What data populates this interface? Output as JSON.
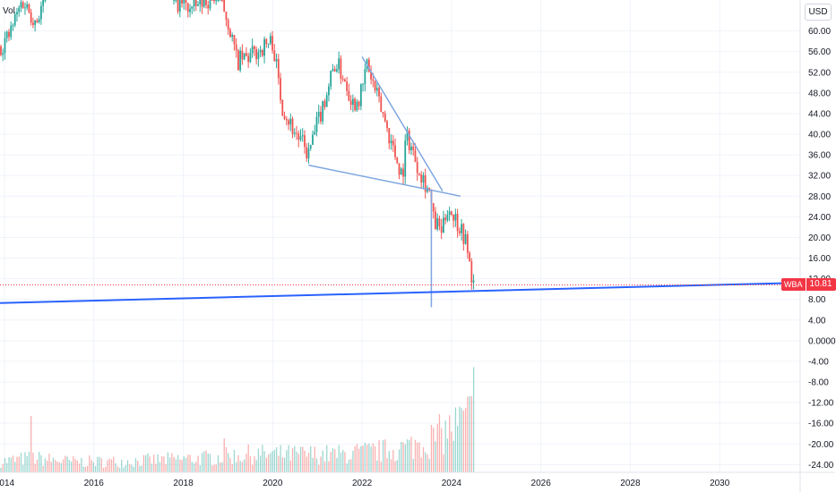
{
  "legend": {
    "volume_label": "Vol"
  },
  "currency": "USD",
  "last_price": {
    "symbol": "WBA",
    "value": "10.81",
    "numeric": 10.81,
    "color": "#f23645"
  },
  "colors": {
    "up": "#26a69a",
    "down": "#ef5350",
    "trendline": "#7fa6e0",
    "support": "#2962ff",
    "price_line": "#f23645"
  },
  "chart_data": {
    "type": "candlestick",
    "y_axis": {
      "ylim": [
        -25.5,
        66
      ],
      "ticks": [
        "60.00",
        "56.00",
        "52.00",
        "48.00",
        "44.00",
        "40.00",
        "36.00",
        "32.00",
        "28.00",
        "24.00",
        "20.00",
        "16.00",
        "12.00",
        "8.00",
        "4.00",
        "0.0000",
        "-4.00",
        "-8.00",
        "-12.00",
        "-16.00",
        "-20.00",
        "-24.00"
      ]
    },
    "x_axis": {
      "xlim": [
        2013.9,
        2031.8
      ],
      "ticks": [
        {
          "label": "2014",
          "value": 2014
        },
        {
          "label": "2016",
          "value": 2016
        },
        {
          "label": "2018",
          "value": 2018
        },
        {
          "label": "2020",
          "value": 2020
        },
        {
          "label": "2022",
          "value": 2022
        },
        {
          "label": "2024",
          "value": 2024
        },
        {
          "label": "2026",
          "value": 2026
        },
        {
          "label": "2028",
          "value": 2028
        },
        {
          "label": "2030",
          "value": 2030
        }
      ]
    },
    "price_path": [
      [
        2013.9,
        57
      ],
      [
        2014.1,
        59
      ],
      [
        2014.4,
        66
      ],
      [
        2014.7,
        62
      ],
      [
        2014.9,
        66
      ],
      [
        2017.8,
        66
      ],
      [
        2018.2,
        64
      ],
      [
        2018.5,
        66
      ],
      [
        2018.8,
        67
      ],
      [
        2019.0,
        62
      ],
      [
        2019.2,
        54
      ],
      [
        2019.5,
        55
      ],
      [
        2019.8,
        57
      ],
      [
        2020.0,
        58
      ],
      [
        2020.2,
        46
      ],
      [
        2020.4,
        42
      ],
      [
        2020.6,
        39
      ],
      [
        2020.8,
        36
      ],
      [
        2021.0,
        42
      ],
      [
        2021.2,
        48
      ],
      [
        2021.4,
        54
      ],
      [
        2021.6,
        51
      ],
      [
        2021.8,
        46
      ],
      [
        2022.0,
        48
      ],
      [
        2022.1,
        54
      ],
      [
        2022.3,
        48
      ],
      [
        2022.5,
        43
      ],
      [
        2022.7,
        37
      ],
      [
        2022.9,
        32
      ],
      [
        2023.0,
        40
      ],
      [
        2023.2,
        35
      ],
      [
        2023.4,
        31
      ],
      [
        2023.5,
        29
      ],
      [
        2023.6,
        23
      ],
      [
        2023.8,
        21
      ],
      [
        2023.9,
        26
      ],
      [
        2024.0,
        25
      ],
      [
        2024.2,
        22
      ],
      [
        2024.3,
        20
      ],
      [
        2024.4,
        15
      ],
      [
        2024.5,
        10.81
      ]
    ],
    "volume_profile": [
      [
        2013.9,
        3
      ],
      [
        2014.6,
        4
      ],
      [
        2015.5,
        3
      ],
      [
        2016.5,
        3
      ],
      [
        2017.5,
        3.5
      ],
      [
        2018.5,
        4
      ],
      [
        2019.5,
        5
      ],
      [
        2020.5,
        5
      ],
      [
        2021.5,
        5
      ],
      [
        2022.5,
        6
      ],
      [
        2023.0,
        7
      ],
      [
        2023.5,
        9
      ],
      [
        2024.0,
        12
      ],
      [
        2024.5,
        16
      ]
    ],
    "volume_spikes": [
      [
        2014.6,
        15
      ],
      [
        2018.9,
        9
      ],
      [
        2023.3,
        8
      ],
      [
        2023.9,
        9
      ],
      [
        2024.5,
        28
      ]
    ],
    "trendlines": [
      {
        "name": "upper",
        "points": [
          [
            2022.0,
            55
          ],
          [
            2023.8,
            29
          ]
        ]
      },
      {
        "name": "lower",
        "points": [
          [
            2020.8,
            34
          ],
          [
            2024.2,
            28
          ]
        ]
      },
      {
        "name": "vertical-drop",
        "points": [
          [
            2023.55,
            29
          ],
          [
            2023.55,
            6.5
          ]
        ]
      },
      {
        "name": "long-support",
        "points": [
          [
            2013.9,
            7.3
          ],
          [
            2031.7,
            11.2
          ]
        ]
      }
    ]
  }
}
